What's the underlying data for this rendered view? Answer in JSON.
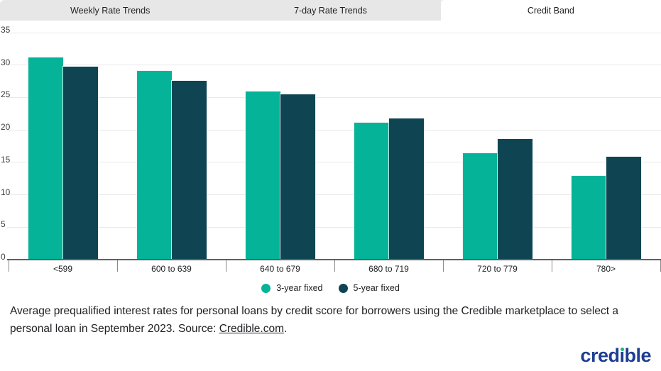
{
  "tabs": [
    {
      "label": "Weekly Rate Trends",
      "active": false
    },
    {
      "label": "7-day Rate Trends",
      "active": false
    },
    {
      "label": "Credit Band",
      "active": true
    }
  ],
  "chart_data": {
    "type": "bar",
    "categories": [
      "<599",
      "600 to 639",
      "640 to 679",
      "680 to 719",
      "720 to 779",
      "780>"
    ],
    "series": [
      {
        "name": "3-year fixed",
        "color": "#04b398",
        "values": [
          31.1,
          29.0,
          25.8,
          21.0,
          16.3,
          12.8
        ]
      },
      {
        "name": "5-year fixed",
        "color": "#0f4553",
        "values": [
          29.6,
          27.4,
          25.4,
          21.7,
          18.5,
          15.8
        ]
      }
    ],
    "ylim": [
      0,
      35
    ],
    "yticks": [
      0,
      5,
      10,
      15,
      20,
      25,
      30,
      35
    ],
    "grid": true,
    "legend_position": "bottom-center",
    "colors": {
      "gridline": "#e9e9e9",
      "axis": "#616161",
      "tick": "#8a8a8a",
      "label": "#202124"
    }
  },
  "caption": {
    "text": "Average prequalified interest rates for personal loans by credit score for borrowers using the Credible marketplace to select a personal loan in September 2023. Source: ",
    "link_text": "Credible.com",
    "after_link": "."
  },
  "logo": {
    "text": "credible",
    "color": "#1e3e93",
    "dot_color": "#21b573"
  }
}
